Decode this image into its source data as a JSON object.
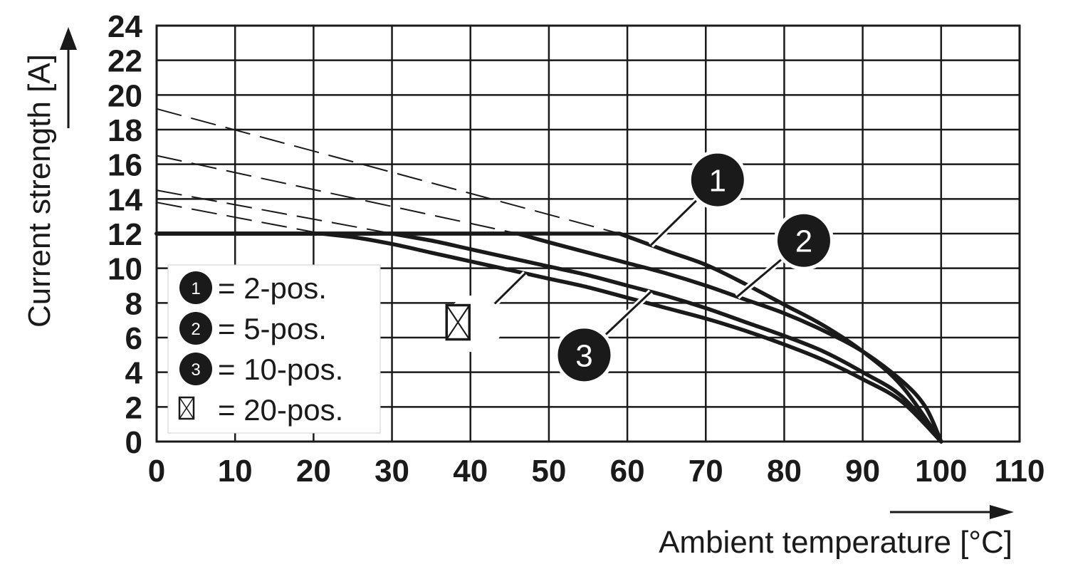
{
  "chart_data": {
    "type": "line",
    "xlabel": "Ambient temperature [°C]",
    "ylabel": "Current strength [A]",
    "xlim": [
      0,
      110
    ],
    "ylim": [
      0,
      24
    ],
    "x_ticks": [
      "0",
      "10",
      "20",
      "30",
      "40",
      "50",
      "60",
      "70",
      "80",
      "90",
      "100",
      "110"
    ],
    "y_ticks": [
      "0",
      "2",
      "4",
      "6",
      "8",
      "10",
      "12",
      "14",
      "16",
      "18",
      "20",
      "22",
      "24"
    ],
    "grid": true,
    "legend_position": "bottom-left",
    "legend": [
      {
        "symbol": "1",
        "label": "= 2-pos."
      },
      {
        "symbol": "2",
        "label": "= 5-pos."
      },
      {
        "symbol": "3",
        "label": "= 10-pos."
      },
      {
        "symbol": "boxed-x",
        "label": "= 20-pos."
      }
    ],
    "series": [
      {
        "name": "1",
        "x": [
          0,
          59,
          65,
          70,
          75,
          80,
          85,
          90,
          95,
          100
        ],
        "y": [
          12,
          12,
          11.0,
          10.2,
          9.1,
          7.9,
          6.7,
          5.2,
          3.2,
          0
        ]
      },
      {
        "name": "2",
        "x": [
          0,
          46,
          50,
          55,
          60,
          65,
          70,
          75,
          80,
          85,
          90,
          95,
          98,
          100
        ],
        "y": [
          12,
          12,
          11.5,
          10.9,
          10.3,
          9.7,
          9.0,
          8.2,
          7.4,
          6.4,
          5.2,
          3.5,
          2.0,
          0
        ]
      },
      {
        "name": "3",
        "x": [
          0,
          30,
          35,
          40,
          45,
          50,
          55,
          60,
          65,
          70,
          75,
          80,
          85,
          90,
          95,
          100
        ],
        "y": [
          12,
          12,
          11.6,
          11.1,
          10.6,
          10.1,
          9.6,
          9.0,
          8.4,
          7.7,
          6.9,
          6.1,
          5.2,
          4.0,
          2.6,
          0
        ]
      },
      {
        "name": "20-pos.",
        "x": [
          0,
          21,
          25,
          30,
          35,
          40,
          45,
          50,
          55,
          60,
          65,
          70,
          75,
          80,
          85,
          90,
          95,
          100
        ],
        "y": [
          12,
          12,
          11.8,
          11.4,
          10.9,
          10.4,
          9.9,
          9.4,
          8.9,
          8.3,
          7.7,
          7.1,
          6.4,
          5.6,
          4.7,
          3.6,
          2.3,
          0
        ]
      }
    ],
    "dashed_extrapolations": [
      {
        "name": "1",
        "x": [
          0,
          59
        ],
        "y": [
          19.2,
          12
        ]
      },
      {
        "name": "2",
        "x": [
          0,
          46
        ],
        "y": [
          16.5,
          12
        ]
      },
      {
        "name": "3",
        "x": [
          0,
          30
        ],
        "y": [
          14.5,
          12
        ]
      },
      {
        "name": "20-pos.",
        "x": [
          0,
          21
        ],
        "y": [
          13.8,
          12
        ]
      }
    ],
    "callouts": [
      {
        "label": "1",
        "series": "1",
        "at_x": 63,
        "anchor_x": 71.5,
        "anchor_y": 15.1
      },
      {
        "label": "2",
        "series": "2",
        "at_x": 74,
        "anchor_x": 82.5,
        "anchor_y": 11.6
      },
      {
        "label": "3",
        "series": "3",
        "at_x": 63,
        "anchor_x": 54.5,
        "anchor_y": 5.0
      },
      {
        "label": "boxed-x",
        "series": "20-pos.",
        "at_x": 47,
        "anchor_x": 40.5,
        "anchor_y": 6.8
      }
    ]
  }
}
